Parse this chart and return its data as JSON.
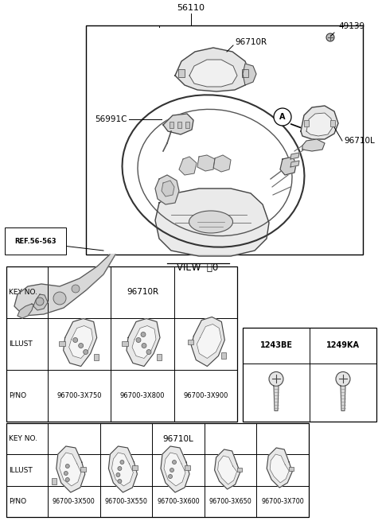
{
  "bg_color": "#ffffff",
  "fig_width": 4.8,
  "fig_height": 6.55,
  "dpi": 100,
  "label_56110": "56110",
  "label_96710R": "96710R",
  "label_49139": "49139",
  "label_56991C": "56991C",
  "label_96710L": "96710L",
  "label_ref": "REF.56-563",
  "view_a": "VIEW",
  "t1_key_no": "KEY NO.",
  "t1_key_val": "96710R",
  "t1_illust": "ILLUST",
  "t1_pno": "P/NO",
  "t1_cols": [
    "96700-3X750",
    "96700-3X800",
    "96700-3X900"
  ],
  "t2_key_no": "KEY NO.",
  "t2_key_val": "96710L",
  "t2_illust": "ILLUST",
  "t2_pno": "P/NO",
  "t2_cols": [
    "96700-3X500",
    "96700-3X550",
    "96700-3X600",
    "96700-3X650",
    "96700-3X700"
  ],
  "st_cols": [
    "1243BE",
    "1249KA"
  ]
}
